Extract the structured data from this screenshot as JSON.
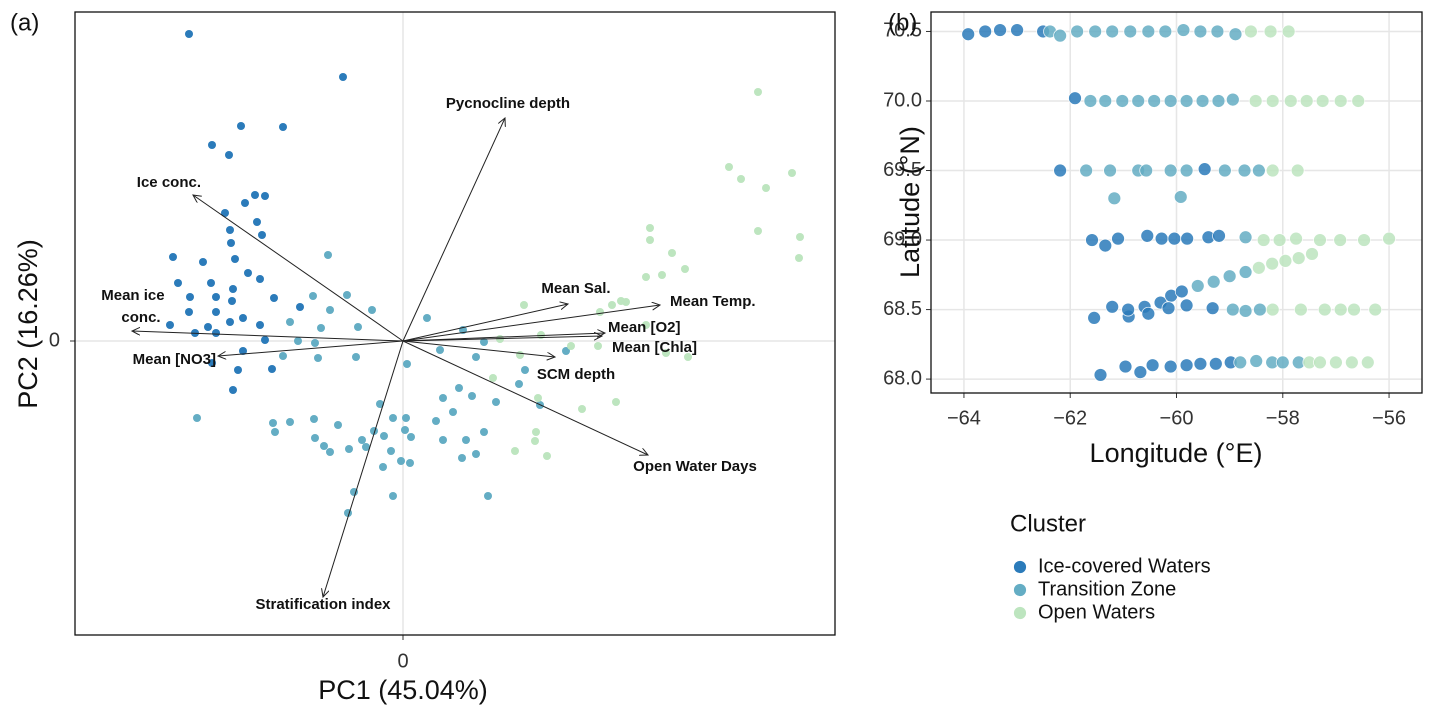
{
  "chart_data": [
    {
      "type": "scatter",
      "panel_label": "(a)",
      "xlabel": "PC1 (45.04%)",
      "ylabel": "PC2 (16.26%)",
      "xlim": [
        -3.28,
        4.32
      ],
      "ylim": [
        -2.94,
        3.29
      ],
      "xticks": [
        0
      ],
      "yticks": [
        0
      ],
      "grid": true,
      "series": [
        {
          "color": "#2b7bba",
          "x": [
            -2.14,
            -0.6,
            -1.62,
            -1.91,
            -1.2,
            -1.74,
            -1.48,
            -1.38,
            -1.58,
            -1.78,
            -1.46,
            -1.41,
            -1.73,
            -1.72,
            -2.3,
            -1.68,
            -2.0,
            -1.55,
            -2.25,
            -1.92,
            -1.7,
            -1.43,
            -2.13,
            -1.87,
            -1.71,
            -1.29,
            -1.03,
            -2.14,
            -1.87,
            -1.6,
            -2.33,
            -1.95,
            -1.73,
            -1.43,
            -2.08,
            -1.87,
            -1.38,
            -1.6,
            -1.91,
            -1.65,
            -1.31,
            -1.7
          ],
          "y": [
            3.07,
            2.64,
            2.15,
            1.96,
            2.14,
            1.86,
            1.46,
            1.45,
            1.38,
            1.28,
            1.19,
            1.06,
            1.11,
            0.98,
            0.84,
            0.82,
            0.79,
            0.68,
            0.58,
            0.58,
            0.52,
            0.62,
            0.44,
            0.44,
            0.4,
            0.43,
            0.34,
            0.29,
            0.29,
            0.23,
            0.16,
            0.14,
            0.19,
            0.16,
            0.08,
            0.08,
            0.01,
            -0.1,
            -0.22,
            -0.29,
            -0.28,
            -0.49
          ]
        },
        {
          "color": "#64adc4",
          "x": [
            -0.75,
            -0.9,
            -0.56,
            -0.73,
            -0.31,
            -1.13,
            -0.82,
            -0.45,
            -1.05,
            -0.88,
            0.24,
            0.6,
            -1.2,
            -0.85,
            -0.47,
            0.04,
            0.37,
            -2.06,
            -1.3,
            -1.13,
            -1.28,
            -0.89,
            -0.88,
            -0.65,
            -0.79,
            -0.73,
            -0.54,
            -0.23,
            -0.1,
            0.03,
            0.02,
            -0.29,
            -0.41,
            -0.37,
            -0.19,
            0.08,
            -0.12,
            -0.2,
            -0.02,
            0.07,
            0.4,
            0.56,
            0.69,
            0.33,
            0.5,
            0.81,
            0.63,
            0.73,
            0.59,
            0.4,
            -0.49,
            -0.1,
            -0.55,
            0.85,
            0.93,
            1.16,
            1.37,
            1.22,
            0.73,
            0.81,
            1.63
          ],
          "y": [
            0.86,
            0.45,
            0.46,
            0.31,
            0.31,
            0.19,
            0.13,
            0.14,
            0.0,
            -0.02,
            0.23,
            0.11,
            -0.15,
            -0.17,
            -0.16,
            -0.23,
            -0.09,
            -0.77,
            -0.82,
            -0.81,
            -0.91,
            -0.78,
            -0.97,
            -0.84,
            -1.05,
            -1.11,
            -1.08,
            -0.63,
            -0.77,
            -0.77,
            -0.89,
            -0.9,
            -0.99,
            -1.06,
            -0.95,
            -0.96,
            -1.1,
            -1.26,
            -1.2,
            -1.22,
            -0.57,
            -0.47,
            -0.55,
            -0.8,
            -0.71,
            -0.91,
            -0.99,
            -1.13,
            -1.17,
            -0.99,
            -1.51,
            -1.55,
            -1.72,
            -1.55,
            -0.61,
            -0.43,
            -0.64,
            -0.29,
            -0.16,
            -0.01,
            -0.1
          ]
        },
        {
          "color": "#bde5bf",
          "x": [
            3.55,
            3.26,
            3.38,
            3.63,
            3.89,
            3.55,
            3.97,
            3.96,
            2.47,
            2.47,
            2.69,
            2.82,
            2.43,
            2.59,
            2.18,
            2.23,
            1.97,
            2.09,
            1.21,
            1.38,
            0.97,
            1.17,
            1.68,
            1.95,
            2.43,
            2.63,
            2.85,
            0.9,
            1.35,
            1.79,
            2.13,
            1.33,
            1.32,
            1.44,
            1.12
          ],
          "y": [
            2.49,
            1.74,
            1.62,
            1.53,
            1.68,
            1.1,
            1.04,
            0.83,
            1.13,
            1.01,
            0.88,
            0.72,
            0.64,
            0.66,
            0.4,
            0.39,
            0.29,
            0.36,
            0.36,
            0.06,
            0.02,
            -0.14,
            -0.05,
            -0.05,
            0.16,
            -0.12,
            -0.16,
            -0.37,
            -0.57,
            -0.68,
            -0.61,
            -0.91,
            -1.0,
            -1.15,
            -1.1
          ]
        }
      ],
      "arrows": [
        {
          "label": "Pycnocline depth",
          "x": 1.02,
          "y": 2.23
        },
        {
          "label": "Ice conc.",
          "x": -2.1,
          "y": 1.46
        },
        {
          "label": "Mean ice conc.",
          "x": -2.71,
          "y": 0.1
        },
        {
          "label": "Mean [NO3]",
          "x": -1.85,
          "y": -0.15
        },
        {
          "label": "Mean Sal.",
          "x": 1.65,
          "y": 0.37
        },
        {
          "label": "Mean Temp.",
          "x": 2.57,
          "y": 0.36
        },
        {
          "label": "Mean [O2]",
          "x": 2.02,
          "y": 0.08
        },
        {
          "label": "Mean [Chla]",
          "x": 1.99,
          "y": 0.05
        },
        {
          "label": "SCM depth",
          "x": 1.52,
          "y": -0.16
        },
        {
          "label": "Open Water Days",
          "x": 2.45,
          "y": -1.14
        },
        {
          "label": "Stratification index",
          "x": -0.8,
          "y": -2.56
        }
      ]
    },
    {
      "type": "scatter",
      "panel_label": "(b)",
      "xlabel": "Longitude (°E)",
      "ylabel": "Latitude (°N)",
      "xlim": [
        -64.62,
        -55.38
      ],
      "ylim": [
        67.9,
        70.64
      ],
      "xticks": [
        {
          "value": -64,
          "label": "−64"
        },
        {
          "value": -62,
          "label": "−62"
        },
        {
          "value": -60,
          "label": "−60"
        },
        {
          "value": -58,
          "label": "−58"
        },
        {
          "value": -56,
          "label": "−56"
        }
      ],
      "yticks": [
        {
          "value": 68,
          "label": "68.0"
        },
        68.5,
        {
          "value": 69,
          "label": "69.0"
        },
        69.5,
        {
          "value": 70,
          "label": "70.0"
        },
        70.5
      ],
      "grid": true,
      "legend_title": "Cluster",
      "series": [
        {
          "name": "Ice-covered Waters",
          "color": "#2b7bba",
          "x": [
            -63.92,
            -63.6,
            -63.32,
            -63.0,
            -62.51,
            -61.91,
            -62.19,
            -59.47,
            -61.59,
            -61.34,
            -61.1,
            -60.55,
            -60.28,
            -60.04,
            -59.8,
            -59.4,
            -59.2,
            -60.9,
            -60.6,
            -60.3,
            -60.1,
            -59.9,
            -61.55,
            -61.21,
            -60.91,
            -60.53,
            -60.15,
            -59.81,
            -59.32,
            -61.43,
            -60.96,
            -60.68,
            -60.45,
            -60.11,
            -59.81,
            -59.55,
            -59.26,
            -58.98
          ],
          "y": [
            70.48,
            70.5,
            70.51,
            70.51,
            70.5,
            70.02,
            69.5,
            69.51,
            69.0,
            68.96,
            69.01,
            69.03,
            69.01,
            69.01,
            69.01,
            69.02,
            69.03,
            68.45,
            68.52,
            68.55,
            68.6,
            68.63,
            68.44,
            68.52,
            68.5,
            68.47,
            68.51,
            68.53,
            68.51,
            68.03,
            68.09,
            68.05,
            68.1,
            68.09,
            68.1,
            68.11,
            68.11,
            68.12
          ]
        },
        {
          "name": "Transition Zone",
          "color": "#64adc4",
          "x": [
            -62.38,
            -62.19,
            -61.87,
            -61.53,
            -61.21,
            -60.87,
            -60.53,
            -60.21,
            -59.87,
            -59.55,
            -59.23,
            -58.89,
            -61.62,
            -61.34,
            -61.02,
            -60.72,
            -60.42,
            -60.11,
            -59.81,
            -59.51,
            -59.21,
            -58.94,
            -61.7,
            -61.25,
            -60.72,
            -60.57,
            -60.11,
            -59.81,
            -59.09,
            -58.72,
            -58.45,
            -61.17,
            -59.92,
            -58.7,
            -59.6,
            -59.3,
            -59.0,
            -58.7,
            -58.94,
            -58.7,
            -58.43,
            -58.8,
            -58.5,
            -58.2,
            -58.0,
            -57.7
          ],
          "y": [
            70.5,
            70.47,
            70.5,
            70.5,
            70.5,
            70.5,
            70.5,
            70.5,
            70.51,
            70.5,
            70.5,
            70.48,
            70.0,
            70.0,
            70.0,
            70.0,
            70.0,
            70.0,
            70.0,
            70.0,
            70.0,
            70.01,
            69.5,
            69.5,
            69.5,
            69.5,
            69.5,
            69.5,
            69.5,
            69.5,
            69.5,
            69.3,
            69.31,
            69.02,
            68.67,
            68.7,
            68.74,
            68.77,
            68.5,
            68.49,
            68.5,
            68.12,
            68.13,
            68.12,
            68.12,
            68.12
          ]
        },
        {
          "name": "Open Waters",
          "color": "#bde5bf",
          "x": [
            -58.6,
            -58.23,
            -57.89,
            -58.51,
            -58.19,
            -57.85,
            -57.55,
            -57.25,
            -56.91,
            -56.58,
            -58.19,
            -57.72,
            -58.36,
            -58.06,
            -57.75,
            -57.3,
            -56.92,
            -56.47,
            -56.0,
            -58.45,
            -58.2,
            -57.95,
            -57.7,
            -57.45,
            -58.19,
            -57.66,
            -57.21,
            -56.91,
            -56.66,
            -56.26,
            -57.5,
            -57.3,
            -57.0,
            -56.7,
            -56.4
          ],
          "y": [
            70.5,
            70.5,
            70.5,
            70.0,
            70.0,
            70.0,
            70.0,
            70.0,
            70.0,
            70.0,
            69.5,
            69.5,
            69.0,
            69.0,
            69.01,
            69.0,
            69.0,
            69.0,
            69.01,
            68.8,
            68.83,
            68.85,
            68.87,
            68.9,
            68.5,
            68.5,
            68.5,
            68.5,
            68.5,
            68.5,
            68.12,
            68.12,
            68.12,
            68.12,
            68.12
          ]
        }
      ]
    }
  ]
}
